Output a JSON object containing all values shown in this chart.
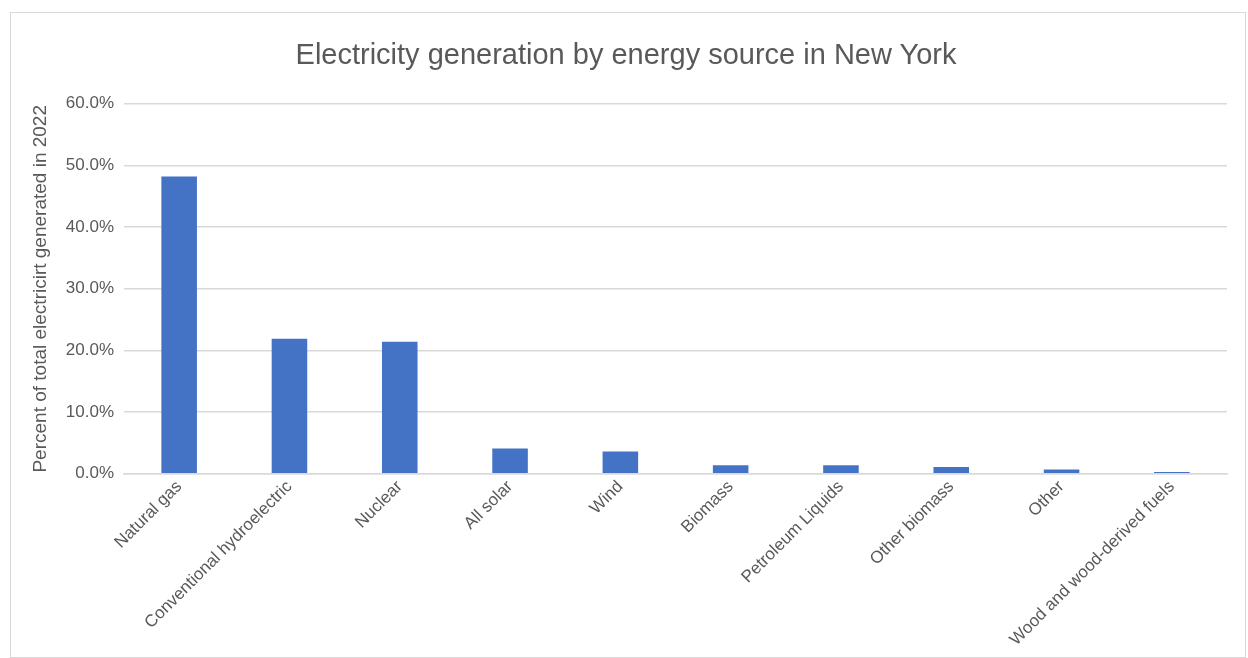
{
  "chart_data": {
    "type": "bar",
    "title": "Electricity generation by energy source in New York",
    "ylabel": "Percent of total electricirt generated in 2022",
    "categories": [
      "Natural gas",
      "Conventional hydroelectric",
      "Nuclear",
      "All solar",
      "Wind",
      "Biomass",
      "Petroleum Liquids",
      "Other biomass",
      "Other",
      "Wood and wood-derived fuels"
    ],
    "values": [
      48.2,
      21.9,
      21.4,
      4.1,
      3.6,
      1.4,
      1.4,
      1.1,
      0.7,
      0.3
    ],
    "color": "#4472c4",
    "ylim": [
      0,
      60
    ],
    "yticks": [
      {
        "value": 0,
        "label": "0.0%"
      },
      {
        "value": 10,
        "label": "10.0%"
      },
      {
        "value": 20,
        "label": "20.0%"
      },
      {
        "value": 30,
        "label": "30.0%"
      },
      {
        "value": 40,
        "label": "40.0%"
      },
      {
        "value": 50,
        "label": "50.0%"
      },
      {
        "value": 60,
        "label": "60.0%"
      }
    ],
    "grid": "y",
    "legend": false
  }
}
